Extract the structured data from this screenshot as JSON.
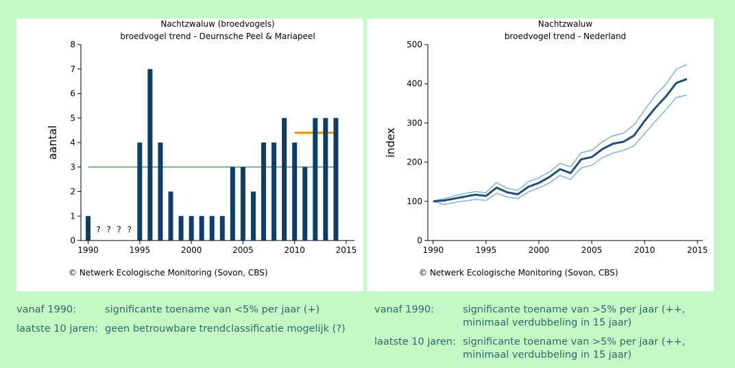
{
  "chart_data": [
    {
      "type": "bar",
      "title": "Nachtzwaluw (broedvogels)",
      "subtitle": "broedvogel trend - Deurnsche Peel & Mariapeel",
      "ylabel": "aantal",
      "source": "© Netwerk Ecologische Monitoring (Sovon, CBS)",
      "x": [
        1990,
        1991,
        1992,
        1993,
        1994,
        1995,
        1996,
        1997,
        1998,
        1999,
        2000,
        2001,
        2002,
        2003,
        2004,
        2005,
        2006,
        2007,
        2008,
        2009,
        2010,
        2011,
        2012,
        2013,
        2014
      ],
      "values": [
        1,
        null,
        null,
        null,
        null,
        4,
        7,
        4,
        2,
        1,
        1,
        1,
        1,
        1,
        3,
        3,
        2,
        4,
        4,
        5,
        4,
        3,
        5,
        5,
        5
      ],
      "color": "#0d3d6b",
      "annotations": [
        {
          "text": "?",
          "x": 1991
        },
        {
          "text": "?",
          "x": 1992
        },
        {
          "text": "?",
          "x": 1993
        },
        {
          "text": "?",
          "x": 1994
        }
      ],
      "reference_lines": [
        {
          "value": 3,
          "from": 1990,
          "to": 2014,
          "color": "#2e8b3e"
        },
        {
          "value": 4.4,
          "from": 2010,
          "to": 2014,
          "color": "#f08c00"
        }
      ],
      "xlim": [
        1989.3,
        2015.8
      ],
      "xticks": [
        1990,
        1995,
        2000,
        2005,
        2010,
        2015
      ],
      "ylim": [
        0,
        8
      ],
      "yticks": [
        0,
        1,
        2,
        3,
        4,
        5,
        6,
        7,
        8
      ]
    },
    {
      "type": "line",
      "title": "Nachtzwaluw",
      "subtitle": "broedvogel trend - Nederland",
      "ylabel": "index",
      "source": "© Netwerk Ecologische Monitoring (Sovon, CBS)",
      "x": [
        1990,
        1991,
        1992,
        1993,
        1994,
        1995,
        1996,
        1997,
        1998,
        1999,
        2000,
        2001,
        2002,
        2003,
        2004,
        2005,
        2006,
        2007,
        2008,
        2009,
        2010,
        2011,
        2012,
        2013,
        2014
      ],
      "series": [
        {
          "color": "#7fb3d1",
          "width": 1.5,
          "values": [
            100,
            107,
            114,
            120,
            125,
            122,
            148,
            133,
            128,
            150,
            160,
            175,
            197,
            188,
            224,
            230,
            252,
            267,
            274,
            295,
            333,
            370,
            398,
            437,
            449
          ]
        },
        {
          "color": "#7fb3d1",
          "width": 1.5,
          "values": [
            100,
            92,
            97,
            101,
            105,
            102,
            121,
            111,
            107,
            124,
            134,
            147,
            166,
            156,
            185,
            192,
            211,
            223,
            230,
            242,
            273,
            304,
            333,
            365,
            371
          ]
        },
        {
          "color": "#1f4e79",
          "width": 3,
          "values": [
            100,
            102,
            107,
            112,
            117,
            114,
            135,
            123,
            118,
            137,
            147,
            162,
            182,
            172,
            207,
            213,
            233,
            247,
            252,
            268,
            305,
            338,
            367,
            402,
            412
          ]
        }
      ],
      "xlim": [
        1989.5,
        2015.5
      ],
      "xticks": [
        1990,
        1995,
        2000,
        2005,
        2010,
        2015
      ],
      "ylim": [
        0,
        500
      ],
      "yticks": [
        0,
        100,
        200,
        300,
        400,
        500
      ]
    }
  ],
  "panels": [
    {
      "rows": [
        {
          "label": "vanaf 1990:",
          "text": "significante toename van <5% per jaar (+)"
        },
        {
          "label": "laatste 10 jaren:",
          "text": "geen betrouwbare trendclassificatie mogelijk (?)"
        }
      ]
    },
    {
      "rows": [
        {
          "label": "vanaf 1990:",
          "text": "significante toename van >5% per jaar (++, minimaal verdubbeling in 15 jaar)"
        },
        {
          "label": "laatste 10 jaren:",
          "text": "significante toename van >5% per jaar (++, minimaal verdubbeling in 15 jaar)"
        }
      ]
    }
  ]
}
